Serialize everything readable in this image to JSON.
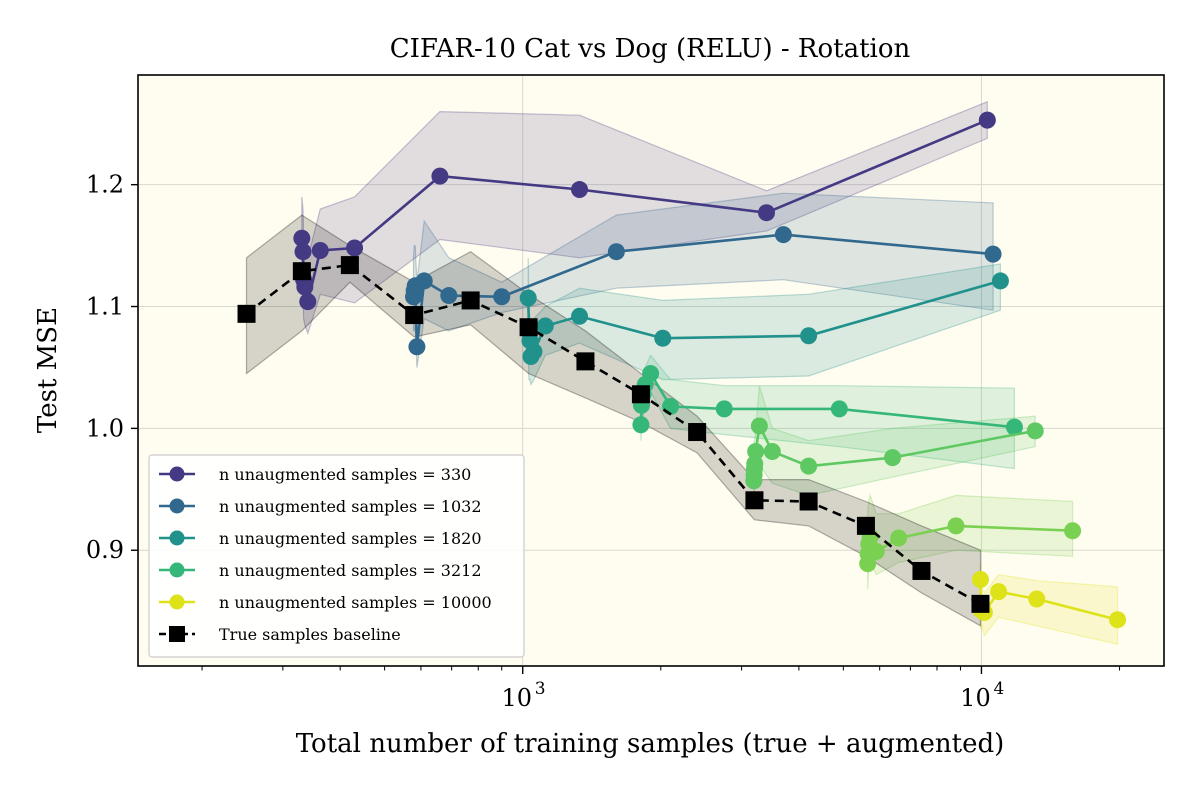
{
  "chart_data": {
    "type": "line",
    "title": "CIFAR-10 Cat vs Dog (RELU) - Rotation",
    "xlabel": "Total number of training samples (true + augmented)",
    "ylabel": "Test MSE",
    "xscale": "log",
    "xlim": [
      145,
      25000
    ],
    "ylim": [
      0.805,
      1.29
    ],
    "grid": true,
    "background": "#fffcf0",
    "xticks": [
      {
        "value": 1000,
        "base": "10",
        "exp": "3"
      },
      {
        "value": 10000,
        "base": "10",
        "exp": "4"
      }
    ],
    "yticks": [
      {
        "value": 0.9,
        "label": "0.9"
      },
      {
        "value": 1.0,
        "label": "1.0"
      },
      {
        "value": 1.1,
        "label": "1.1"
      },
      {
        "value": 1.2,
        "label": "1.2"
      }
    ],
    "legend_position": "lower-left",
    "series": [
      {
        "name": "n unaugmented samples = 330",
        "color": "#443983",
        "style": "solid",
        "marker": "circle",
        "points": [
          {
            "x": 330,
            "y": 1.156
          },
          {
            "x": 332,
            "y": 1.145
          },
          {
            "x": 333,
            "y": 1.122
          },
          {
            "x": 335,
            "y": 1.116
          },
          {
            "x": 340,
            "y": 1.104
          },
          {
            "x": 362,
            "y": 1.146
          },
          {
            "x": 430,
            "y": 1.148
          },
          {
            "x": 660,
            "y": 1.207
          },
          {
            "x": 1330,
            "y": 1.196
          },
          {
            "x": 3400,
            "y": 1.177
          },
          {
            "x": 10300,
            "y": 1.253
          }
        ],
        "band": {
          "upper": [
            1.19,
            1.18,
            1.16,
            1.15,
            1.14,
            1.18,
            1.19,
            1.26,
            1.257,
            1.195,
            1.268
          ],
          "lower": [
            1.12,
            1.11,
            1.09,
            1.085,
            1.078,
            1.11,
            1.103,
            1.155,
            1.14,
            1.162,
            1.238
          ]
        }
      },
      {
        "name": "n unaugmented samples = 1032",
        "color": "#31688e",
        "style": "solid",
        "marker": "circle",
        "points": [
          {
            "x": 578,
            "y": 1.108
          },
          {
            "x": 580,
            "y": 1.113
          },
          {
            "x": 583,
            "y": 1.117
          },
          {
            "x": 588,
            "y": 1.067
          },
          {
            "x": 610,
            "y": 1.121
          },
          {
            "x": 690,
            "y": 1.109
          },
          {
            "x": 900,
            "y": 1.108
          },
          {
            "x": 1600,
            "y": 1.145
          },
          {
            "x": 3700,
            "y": 1.159
          },
          {
            "x": 10600,
            "y": 1.143
          }
        ],
        "band": {
          "upper": [
            1.14,
            1.15,
            1.15,
            1.12,
            1.17,
            1.14,
            1.12,
            1.175,
            1.193,
            1.185
          ],
          "lower": [
            1.08,
            1.08,
            1.085,
            1.05,
            1.09,
            1.08,
            1.095,
            1.115,
            1.122,
            1.097
          ]
        }
      },
      {
        "name": "n unaugmented samples = 1820",
        "color": "#21918c",
        "style": "solid",
        "marker": "circle",
        "points": [
          {
            "x": 1028,
            "y": 1.107
          },
          {
            "x": 1032,
            "y": 1.081
          },
          {
            "x": 1037,
            "y": 1.072
          },
          {
            "x": 1042,
            "y": 1.059
          },
          {
            "x": 1058,
            "y": 1.063
          },
          {
            "x": 1120,
            "y": 1.084
          },
          {
            "x": 1330,
            "y": 1.092
          },
          {
            "x": 2020,
            "y": 1.074
          },
          {
            "x": 4200,
            "y": 1.076
          },
          {
            "x": 11000,
            "y": 1.121
          }
        ],
        "band": {
          "upper": [
            1.14,
            1.1,
            1.09,
            1.08,
            1.09,
            1.1,
            1.115,
            1.105,
            1.11,
            1.135
          ],
          "lower": [
            1.06,
            1.04,
            1.04,
            1.036,
            1.04,
            1.06,
            1.07,
            1.04,
            1.043,
            1.097
          ]
        }
      },
      {
        "name": "n unaugmented samples = 3212",
        "color": "#35b779",
        "style": "solid",
        "marker": "circle",
        "points": [
          {
            "x": 1810,
            "y": 1.003
          },
          {
            "x": 1815,
            "y": 1.019
          },
          {
            "x": 1830,
            "y": 1.028
          },
          {
            "x": 1850,
            "y": 1.036
          },
          {
            "x": 1900,
            "y": 1.045
          },
          {
            "x": 2100,
            "y": 1.018
          },
          {
            "x": 2750,
            "y": 1.016
          },
          {
            "x": 4900,
            "y": 1.016
          },
          {
            "x": 11800,
            "y": 1.001
          }
        ],
        "band": {
          "upper": [
            1.02,
            1.035,
            1.045,
            1.05,
            1.06,
            1.04,
            1.035,
            1.035,
            1.033
          ],
          "lower": [
            0.99,
            1.0,
            1.01,
            1.02,
            1.03,
            1.0,
            0.995,
            0.985,
            0.967
          ]
        }
      },
      {
        "name": "n unaugmented samples = 10000",
        "color": "#5ec962",
        "style": "solid",
        "marker": "circle",
        "points": [
          {
            "x": 3190,
            "y": 0.957
          },
          {
            "x": 3195,
            "y": 0.962
          },
          {
            "x": 3200,
            "y": 0.967
          },
          {
            "x": 3205,
            "y": 0.971
          },
          {
            "x": 3220,
            "y": 0.981
          },
          {
            "x": 3280,
            "y": 1.002
          },
          {
            "x": 3500,
            "y": 0.981
          },
          {
            "x": 4200,
            "y": 0.969
          },
          {
            "x": 6400,
            "y": 0.976
          },
          {
            "x": 13100,
            "y": 0.998
          }
        ],
        "band": {
          "upper": [
            0.98,
            0.985,
            0.99,
            0.99,
            1.0,
            1.035,
            1.0,
            0.99,
            1.0,
            1.01
          ],
          "lower": [
            0.935,
            0.94,
            0.945,
            0.955,
            0.965,
            0.97,
            0.955,
            0.945,
            0.96,
            0.985
          ]
        }
      },
      {
        "name": "n unaugmented samples = 10000",
        "color": "#7ad151",
        "style": "solid",
        "marker": "circle",
        "points": [
          {
            "x": 5650,
            "y": 0.889
          },
          {
            "x": 5660,
            "y": 0.897
          },
          {
            "x": 5680,
            "y": 0.905
          },
          {
            "x": 5720,
            "y": 0.911
          },
          {
            "x": 5900,
            "y": 0.899
          },
          {
            "x": 6600,
            "y": 0.91
          },
          {
            "x": 8800,
            "y": 0.92
          },
          {
            "x": 15800,
            "y": 0.916
          }
        ],
        "band": {
          "upper": [
            0.93,
            0.935,
            0.94,
            0.945,
            0.93,
            0.93,
            0.945,
            0.94
          ],
          "lower": [
            0.868,
            0.875,
            0.885,
            0.89,
            0.88,
            0.89,
            0.9,
            0.895
          ]
        }
      },
      {
        "name": "n unaugmented samples = 10000",
        "color": "#dde318",
        "style": "solid",
        "marker": "circle",
        "points": [
          {
            "x": 9950,
            "y": 0.876
          },
          {
            "x": 9970,
            "y": 0.851
          },
          {
            "x": 10020,
            "y": 0.853
          },
          {
            "x": 10150,
            "y": 0.849
          },
          {
            "x": 10900,
            "y": 0.866
          },
          {
            "x": 13200,
            "y": 0.86
          },
          {
            "x": 19800,
            "y": 0.843
          }
        ],
        "band": {
          "upper": [
            0.89,
            0.87,
            0.87,
            0.865,
            0.88,
            0.875,
            0.87
          ],
          "lower": [
            0.84,
            0.835,
            0.838,
            0.83,
            0.845,
            0.838,
            0.823
          ]
        }
      },
      {
        "name": "True samples baseline",
        "color": "#000000",
        "style": "dashed",
        "marker": "square",
        "points": [
          {
            "x": 250,
            "y": 1.094
          },
          {
            "x": 330,
            "y": 1.129
          },
          {
            "x": 420,
            "y": 1.134
          },
          {
            "x": 580,
            "y": 1.093
          },
          {
            "x": 770,
            "y": 1.105
          },
          {
            "x": 1030,
            "y": 1.083
          },
          {
            "x": 1370,
            "y": 1.055
          },
          {
            "x": 1810,
            "y": 1.028
          },
          {
            "x": 2400,
            "y": 0.997
          },
          {
            "x": 3200,
            "y": 0.941
          },
          {
            "x": 4200,
            "y": 0.94
          },
          {
            "x": 5600,
            "y": 0.92
          },
          {
            "x": 7400,
            "y": 0.883
          },
          {
            "x": 9950,
            "y": 0.856
          }
        ],
        "band": {
          "upper": [
            1.14,
            1.175,
            1.15,
            1.12,
            1.145,
            1.11,
            1.08,
            1.045,
            1.01,
            0.958,
            0.958,
            0.94,
            0.92,
            0.9
          ],
          "lower": [
            1.045,
            1.08,
            1.12,
            1.075,
            1.085,
            1.045,
            1.025,
            1.005,
            0.98,
            0.925,
            0.92,
            0.895,
            0.865,
            0.838
          ]
        }
      }
    ],
    "legend_entries": [
      {
        "label": "n unaugmented samples = 330",
        "color": "#443983",
        "marker": "circle",
        "style": "solid"
      },
      {
        "label": "n unaugmented samples = 1032",
        "color": "#31688e",
        "marker": "circle",
        "style": "solid"
      },
      {
        "label": "n unaugmented samples = 1820",
        "color": "#21918c",
        "marker": "circle",
        "style": "solid"
      },
      {
        "label": "n unaugmented samples = 3212",
        "color": "#35b779",
        "marker": "circle",
        "style": "solid"
      },
      {
        "label": "n unaugmented samples = 10000",
        "color": "#dde318",
        "marker": "circle",
        "style": "solid"
      },
      {
        "label": "True samples baseline",
        "color": "#000000",
        "marker": "square",
        "style": "dashed"
      }
    ]
  }
}
